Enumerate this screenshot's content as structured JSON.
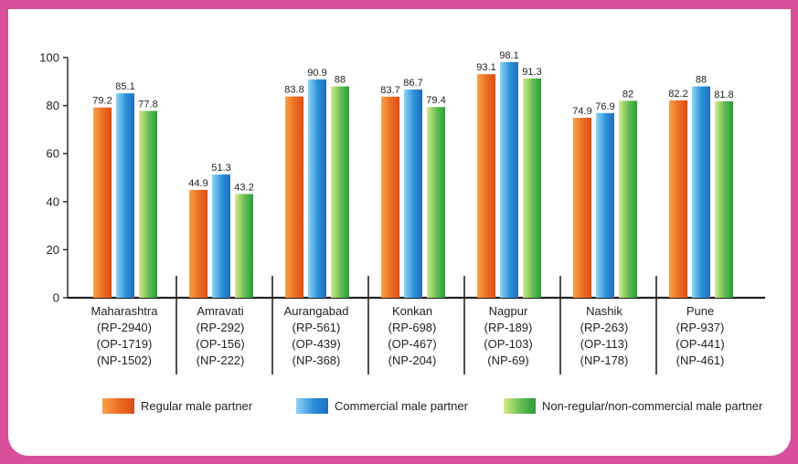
{
  "chart_data": {
    "type": "bar",
    "title": "",
    "xlabel": "",
    "ylabel": "",
    "ylim": [
      0,
      100
    ],
    "yticks": [
      0,
      20,
      40,
      60,
      80,
      100
    ],
    "grid": false,
    "legend_position": "bottom",
    "categories": [
      [
        "Maharashtra",
        "(RP-2940)",
        "(OP-1719)",
        "(NP-1502)"
      ],
      [
        "Amravati",
        "(RP-292)",
        "(OP-156)",
        "(NP-222)"
      ],
      [
        "Aurangabad",
        "(RP-561)",
        "(OP-439)",
        "(NP-368)"
      ],
      [
        "Konkan",
        "(RP-698)",
        "(OP-467)",
        "(NP-204)"
      ],
      [
        "Nagpur",
        "(RP-189)",
        "(OP-103)",
        "(NP-69)"
      ],
      [
        "Nashik",
        "(RP-263)",
        "(OP-113)",
        "(NP-178)"
      ],
      [
        "Pune",
        "(RP-937)",
        "(OP-441)",
        "(NP-461)"
      ]
    ],
    "series": [
      {
        "name": "Regular male partner",
        "color": "#ee6a1f",
        "values": [
          79.2,
          44.9,
          83.8,
          83.7,
          93.1,
          74.9,
          82.2
        ]
      },
      {
        "name": "Commercial male partner",
        "color": "#2a8fd8",
        "values": [
          85.1,
          51.3,
          90.9,
          86.7,
          98.1,
          76.9,
          88
        ]
      },
      {
        "name": "Non-regular/non-commercial male partner",
        "color": "#58b848",
        "values": [
          77.8,
          43.2,
          88,
          79.4,
          91.3,
          82,
          81.8
        ]
      }
    ]
  }
}
